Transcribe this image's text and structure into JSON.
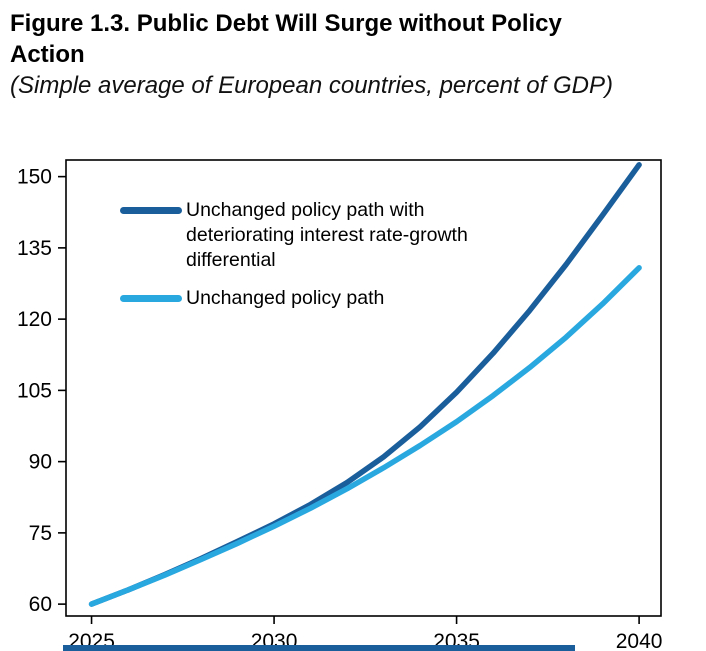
{
  "page": {
    "title": "Figure 1.3. Public Debt Will Surge without Policy Action",
    "subtitle": "(Simple average of European countries, percent of GDP)"
  },
  "colors": {
    "dark_blue": "#1a5e9c",
    "light_blue": "#29a8e0",
    "axis": "#000000"
  },
  "chart_data": {
    "type": "line",
    "title": "Figure 1.3. Public Debt Will Surge without Policy Action",
    "subtitle": "(Simple average of European countries, percent of GDP)",
    "xlabel": "",
    "ylabel": "Percent of GDP",
    "x": [
      2025,
      2026,
      2027,
      2028,
      2029,
      2030,
      2031,
      2032,
      2033,
      2034,
      2035,
      2036,
      2037,
      2038,
      2039,
      2040
    ],
    "series": [
      {
        "name": "Unchanged policy path with deteriorating interest rate-growth differential",
        "color": "#1a5e9c",
        "values": [
          60,
          63.0,
          66.2,
          69.6,
          73.2,
          76.9,
          81.0,
          85.6,
          91.0,
          97.3,
          104.6,
          112.8,
          121.8,
          131.5,
          141.9,
          152.5
        ]
      },
      {
        "name": "Unchanged policy path",
        "color": "#29a8e0",
        "values": [
          60,
          63.0,
          66.1,
          69.4,
          72.8,
          76.4,
          80.2,
          84.3,
          88.7,
          93.4,
          98.4,
          103.9,
          109.8,
          116.2,
          123.2,
          130.8
        ]
      }
    ],
    "xticks": [
      2025,
      2030,
      2035,
      2040
    ],
    "yticks": [
      60,
      75,
      90,
      105,
      120,
      135,
      150
    ],
    "xlim": [
      2024.3,
      2040.6
    ],
    "ylim": [
      57.5,
      153.5
    ],
    "grid": false,
    "legend_position": "top-left"
  }
}
